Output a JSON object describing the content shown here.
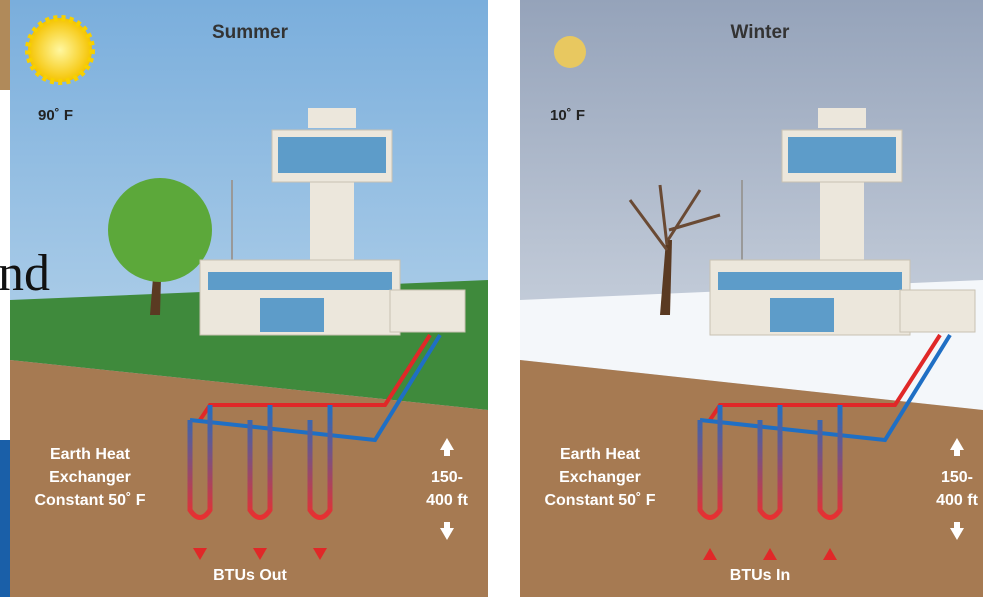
{
  "background_text": "nd",
  "panels": [
    {
      "title": "Summer",
      "temperature": "90˚ F",
      "label_lines": [
        "Earth Heat",
        "Exchanger",
        "Constant 50˚ F"
      ],
      "depth_lines": [
        "150-",
        "400 ft"
      ],
      "flow": "BTUs Out"
    },
    {
      "title": "Winter",
      "temperature": "10˚ F",
      "label_lines": [
        "Earth Heat",
        "Exchanger",
        "Constant 50˚ F"
      ],
      "depth_lines": [
        "150-",
        "400 ft"
      ],
      "flow": "BTUs In"
    }
  ]
}
